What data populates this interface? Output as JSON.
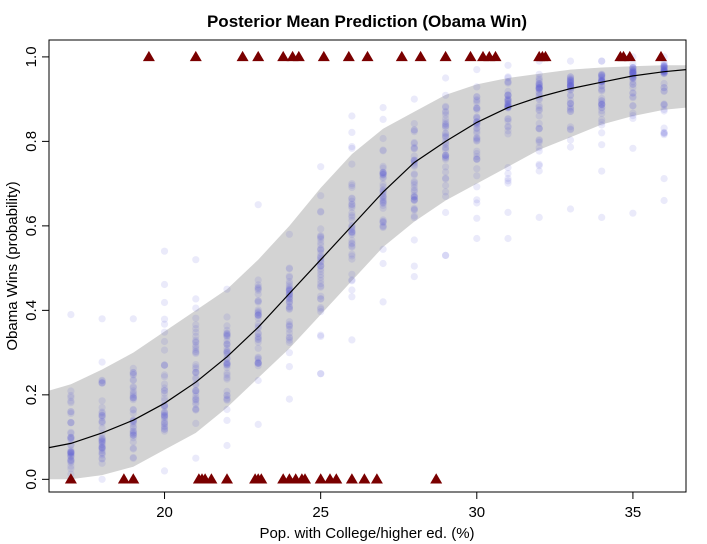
{
  "chart_data": {
    "type": "scatter",
    "title": "Posterior Mean Prediction (Obama Win)",
    "xlabel": "Pop. with College/higher ed. (%)",
    "ylabel": "Obama Wins (probability)",
    "xlim": [
      16.3,
      36.7
    ],
    "ylim": [
      -0.03,
      1.04
    ],
    "x_ticks": [
      20,
      25,
      30,
      35
    ],
    "x_tick_labels": [
      "20",
      "25",
      "30",
      "35"
    ],
    "y_ticks": [
      0.0,
      0.2,
      0.4,
      0.6,
      0.8,
      1.0
    ],
    "y_tick_labels": [
      "0.0",
      "0.2",
      "0.4",
      "0.6",
      "0.8",
      "1.0"
    ],
    "grid": false,
    "legend": "none",
    "colors": {
      "points": "#5b5bdc",
      "band": "#d3d3d3",
      "curve": "#000000",
      "triangles": "#7a0000"
    },
    "posterior_mean_curve": {
      "x": [
        16.3,
        17,
        18,
        19,
        20,
        21,
        22,
        23,
        24,
        25,
        26,
        27,
        28,
        29,
        30,
        31,
        32,
        33,
        34,
        35,
        36,
        36.7
      ],
      "y": [
        0.075,
        0.085,
        0.11,
        0.14,
        0.18,
        0.23,
        0.29,
        0.36,
        0.44,
        0.52,
        0.6,
        0.68,
        0.75,
        0.8,
        0.845,
        0.88,
        0.905,
        0.925,
        0.94,
        0.955,
        0.965,
        0.97
      ]
    },
    "credible_band": {
      "x": [
        16.3,
        17,
        18,
        19,
        20,
        21,
        22,
        23,
        24,
        25,
        26,
        27,
        28,
        29,
        30,
        31,
        32,
        33,
        34,
        35,
        36,
        36.7
      ],
      "lower": [
        0.0,
        0.0,
        0.01,
        0.03,
        0.07,
        0.11,
        0.17,
        0.24,
        0.31,
        0.39,
        0.47,
        0.55,
        0.61,
        0.66,
        0.7,
        0.74,
        0.78,
        0.81,
        0.84,
        0.86,
        0.875,
        0.88
      ],
      "upper": [
        0.21,
        0.225,
        0.26,
        0.3,
        0.35,
        0.4,
        0.45,
        0.52,
        0.6,
        0.69,
        0.77,
        0.83,
        0.87,
        0.91,
        0.935,
        0.95,
        0.96,
        0.97,
        0.975,
        0.978,
        0.98,
        0.98
      ]
    },
    "posterior_draws": {
      "x": [
        17,
        18,
        19,
        20,
        21,
        22,
        23,
        24,
        25,
        26,
        27,
        28,
        29,
        30,
        31,
        32,
        33,
        34,
        35,
        36
      ],
      "mean": [
        0.07,
        0.1,
        0.14,
        0.18,
        0.23,
        0.29,
        0.35,
        0.43,
        0.51,
        0.6,
        0.67,
        0.74,
        0.8,
        0.84,
        0.88,
        0.91,
        0.93,
        0.94,
        0.95,
        0.96
      ],
      "min": [
        0.0,
        0.0,
        0.0,
        0.02,
        0.05,
        0.08,
        0.13,
        0.19,
        0.25,
        0.33,
        0.42,
        0.48,
        0.53,
        0.57,
        0.57,
        0.62,
        0.64,
        0.62,
        0.63,
        0.66
      ],
      "max": [
        0.39,
        0.38,
        0.38,
        0.54,
        0.52,
        0.45,
        0.65,
        0.58,
        0.74,
        0.86,
        0.88,
        0.9,
        0.95,
        0.97,
        0.98,
        0.99,
        0.99,
        0.99,
        1.0,
        1.0
      ]
    },
    "observed_wins_x": [
      19.5,
      21.0,
      22.5,
      23.0,
      23.8,
      24.1,
      24.3,
      25.1,
      25.9,
      26.5,
      27.6,
      28.2,
      29.0,
      29.8,
      30.2,
      30.4,
      30.6,
      32.0,
      32.1,
      32.2,
      34.6,
      34.7,
      34.9,
      35.9
    ],
    "observed_losses_x": [
      17.0,
      18.7,
      19.0,
      21.1,
      21.2,
      21.3,
      21.5,
      22.0,
      22.9,
      23.0,
      23.1,
      23.8,
      24.0,
      24.2,
      24.4,
      24.5,
      25.0,
      25.3,
      25.5,
      26.0,
      26.4,
      26.8,
      28.7
    ]
  }
}
